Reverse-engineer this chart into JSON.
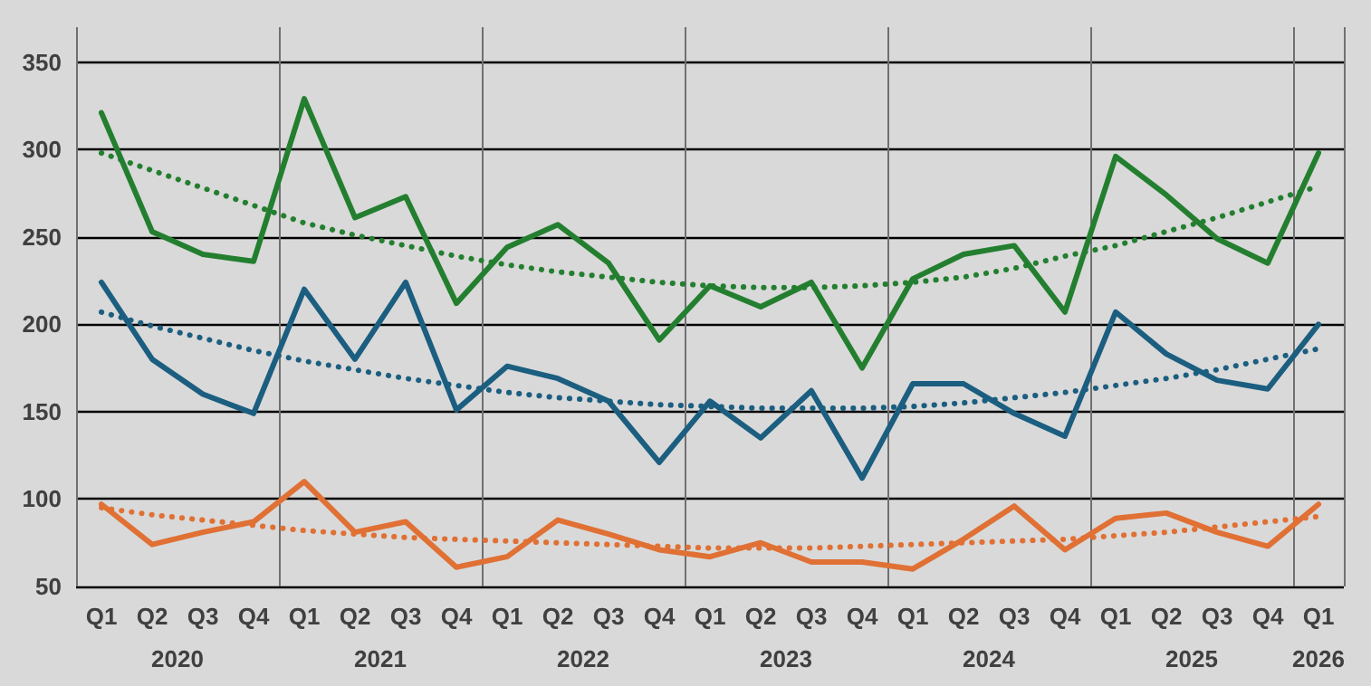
{
  "chart_data": {
    "type": "line",
    "categories": [
      "Q1",
      "Q2",
      "Q3",
      "Q4",
      "Q1",
      "Q2",
      "Q3",
      "Q4",
      "Q1",
      "Q2",
      "Q3",
      "Q4",
      "Q1",
      "Q2",
      "Q3",
      "Q4",
      "Q1",
      "Q2",
      "Q3",
      "Q4",
      "Q1",
      "Q2",
      "Q3",
      "Q4",
      "Q1"
    ],
    "annotations": [
      "2020",
      "2021",
      "2022",
      "2023",
      "2024",
      "2025",
      "2026"
    ],
    "series": [
      {
        "color": "#237f2f",
        "line_style": "solid",
        "values": [
          321,
          253,
          240,
          236,
          329,
          261,
          273,
          212,
          244,
          257,
          235,
          191,
          222,
          210,
          224,
          175,
          226,
          240,
          245,
          207,
          296,
          274,
          249,
          235,
          298
        ]
      },
      {
        "color": "#1b5e80",
        "line_style": "solid",
        "values": [
          224,
          180,
          160,
          149,
          220,
          180,
          224,
          151,
          176,
          169,
          156,
          121,
          156,
          135,
          162,
          112,
          166,
          166,
          149,
          136,
          207,
          183,
          168,
          163,
          200
        ]
      },
      {
        "color": "#e07034",
        "line_style": "solid",
        "values": [
          97,
          74,
          81,
          87,
          110,
          81,
          87,
          61,
          67,
          88,
          80,
          71,
          67,
          75,
          64,
          64,
          60,
          77,
          96,
          71,
          89,
          92,
          81,
          73,
          97
        ]
      },
      {
        "color": "#237f2f",
        "line_style": "dotted",
        "values": [
          298,
          288,
          278,
          268,
          258,
          251,
          245,
          239,
          234,
          230,
          227,
          224,
          222,
          221,
          221,
          222,
          224,
          227,
          232,
          239,
          245,
          253,
          261,
          270,
          279
        ]
      },
      {
        "color": "#1b5e80",
        "line_style": "dotted",
        "values": [
          207,
          199,
          192,
          185,
          179,
          174,
          169,
          165,
          161,
          158,
          156,
          154,
          153,
          152,
          152,
          152,
          153,
          155,
          158,
          161,
          165,
          169,
          174,
          180,
          186
        ]
      },
      {
        "color": "#e07034",
        "line_style": "dotted",
        "values": [
          95,
          91,
          88,
          85,
          82,
          80,
          78,
          77,
          76,
          75,
          74,
          73,
          72,
          72,
          72,
          73,
          74,
          75,
          76,
          77,
          79,
          81,
          84,
          87,
          90
        ]
      }
    ],
    "ylim": [
      50,
      370
    ],
    "yticks": [
      50,
      100,
      150,
      200,
      250,
      300,
      350
    ],
    "grid": true,
    "marker": "none"
  }
}
